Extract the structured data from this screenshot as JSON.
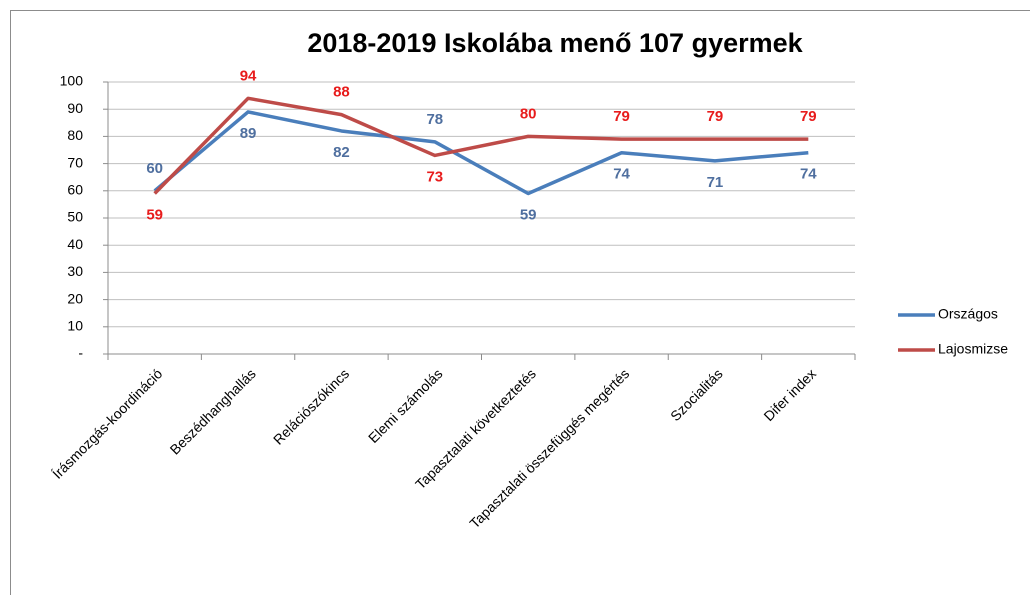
{
  "chart_data": {
    "type": "line",
    "title": "2018-2019 Iskolába menő 107 gyermek",
    "categories": [
      "Írásmozgás-koordináció",
      "Beszédhanghallás",
      "Relációszókincs",
      "Elemi számolás",
      "Tapasztalati következtetés",
      "Tapasztalati összefüggés megértés",
      "Szocialitás",
      "Difer index"
    ],
    "series": [
      {
        "name": "Országos",
        "color": "#4a7ebb",
        "label_color": "#4f6f9f",
        "values": [
          60,
          89,
          82,
          78,
          59,
          74,
          71,
          74
        ]
      },
      {
        "name": "Lajosmizse",
        "color": "#be4b48",
        "label_color": "#e81c1c",
        "values": [
          59,
          94,
          88,
          73,
          80,
          79,
          79,
          79
        ]
      }
    ],
    "ylim": [
      0,
      100
    ],
    "yticks": [
      {
        "value": 0,
        "label": "-"
      },
      10,
      20,
      30,
      40,
      50,
      60,
      70,
      80,
      90,
      100
    ],
    "grid": true,
    "legend": "right"
  }
}
